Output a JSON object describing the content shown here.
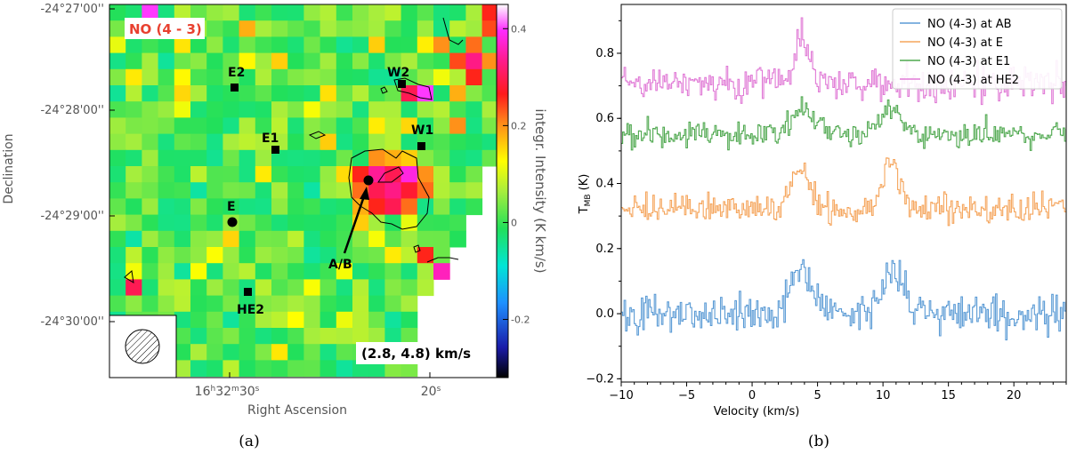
{
  "figure": {
    "panel_a_label": "(a)",
    "panel_b_label": "(b)"
  },
  "colors": {
    "series": [
      "#5b9bd5",
      "#f5a55c",
      "#4fa84f",
      "#e07ad6"
    ],
    "map_title": "#e8402f",
    "contour": "#000000"
  },
  "chart_data": [
    {
      "type": "heatmap",
      "title": "NO (4 - 3)",
      "annotation": "(2.8, 4.8) km/s",
      "xlabel": "Right Ascension",
      "ylabel": "Declination",
      "colorbar_label": "integr. Intensity (K km/s)",
      "colorbar_range": [
        -0.32,
        0.45
      ],
      "colorbar_ticks": [
        "0.4",
        "0.2",
        "0",
        "-0.2"
      ],
      "colorbar_tick_values": [
        0.4,
        0.2,
        0.0,
        -0.2
      ],
      "x_tick_labels": [
        "16h32m30s",
        "20s"
      ],
      "y_tick_labels": [
        "-24°27'00''",
        "-24°28'00''",
        "-24°29'00''",
        "-24°30'00''"
      ],
      "sources": [
        {
          "name": "E2",
          "marker": "square"
        },
        {
          "name": "W2",
          "marker": "square"
        },
        {
          "name": "E1",
          "marker": "square"
        },
        {
          "name": "W1",
          "marker": "square"
        },
        {
          "name": "E",
          "marker": "circle"
        },
        {
          "name": "A/B",
          "marker": "circle"
        },
        {
          "name": "HE2",
          "marker": "square"
        }
      ],
      "beam": "hatched circle"
    },
    {
      "type": "line",
      "xlabel": "Velocity (km/s)",
      "ylabel": "T",
      "ylabel_sub": "MB",
      "ylabel_unit": " (K)",
      "xlim": [
        -10,
        24
      ],
      "ylim": [
        -0.21,
        0.95
      ],
      "x_ticks": [
        -10,
        -5,
        0,
        5,
        10,
        15,
        20
      ],
      "x_tick_labels": [
        "−10",
        "−5",
        "0",
        "5",
        "10",
        "15",
        "20"
      ],
      "y_ticks": [
        -0.2,
        0.0,
        0.2,
        0.4,
        0.6,
        0.8
      ],
      "y_tick_labels": [
        "−0.2",
        "0.0",
        "0.2",
        "0.4",
        "0.6",
        "0.8"
      ],
      "legend_position": "top-right",
      "series": [
        {
          "name": "NO (4-3) at AB",
          "offset": 0.0,
          "noise": 0.05,
          "peaks": [
            {
              "v": 3.8,
              "amp": 0.15,
              "w": 0.8
            },
            {
              "v": 10.8,
              "amp": 0.14,
              "w": 0.8
            }
          ]
        },
        {
          "name": "NO (4-3) at E",
          "offset": 0.32,
          "noise": 0.035,
          "peaks": [
            {
              "v": 3.6,
              "amp": 0.13,
              "w": 0.7
            },
            {
              "v": 10.6,
              "amp": 0.15,
              "w": 0.7
            }
          ]
        },
        {
          "name": "NO (4-3) at E1",
          "offset": 0.55,
          "noise": 0.035,
          "peaks": [
            {
              "v": 3.8,
              "amp": 0.08,
              "w": 0.8
            },
            {
              "v": 10.5,
              "amp": 0.08,
              "w": 0.8
            }
          ]
        },
        {
          "name": "NO (4-3) at HE2",
          "offset": 0.71,
          "noise": 0.045,
          "peaks": [
            {
              "v": 3.8,
              "amp": 0.13,
              "w": 0.5
            }
          ]
        }
      ]
    }
  ]
}
